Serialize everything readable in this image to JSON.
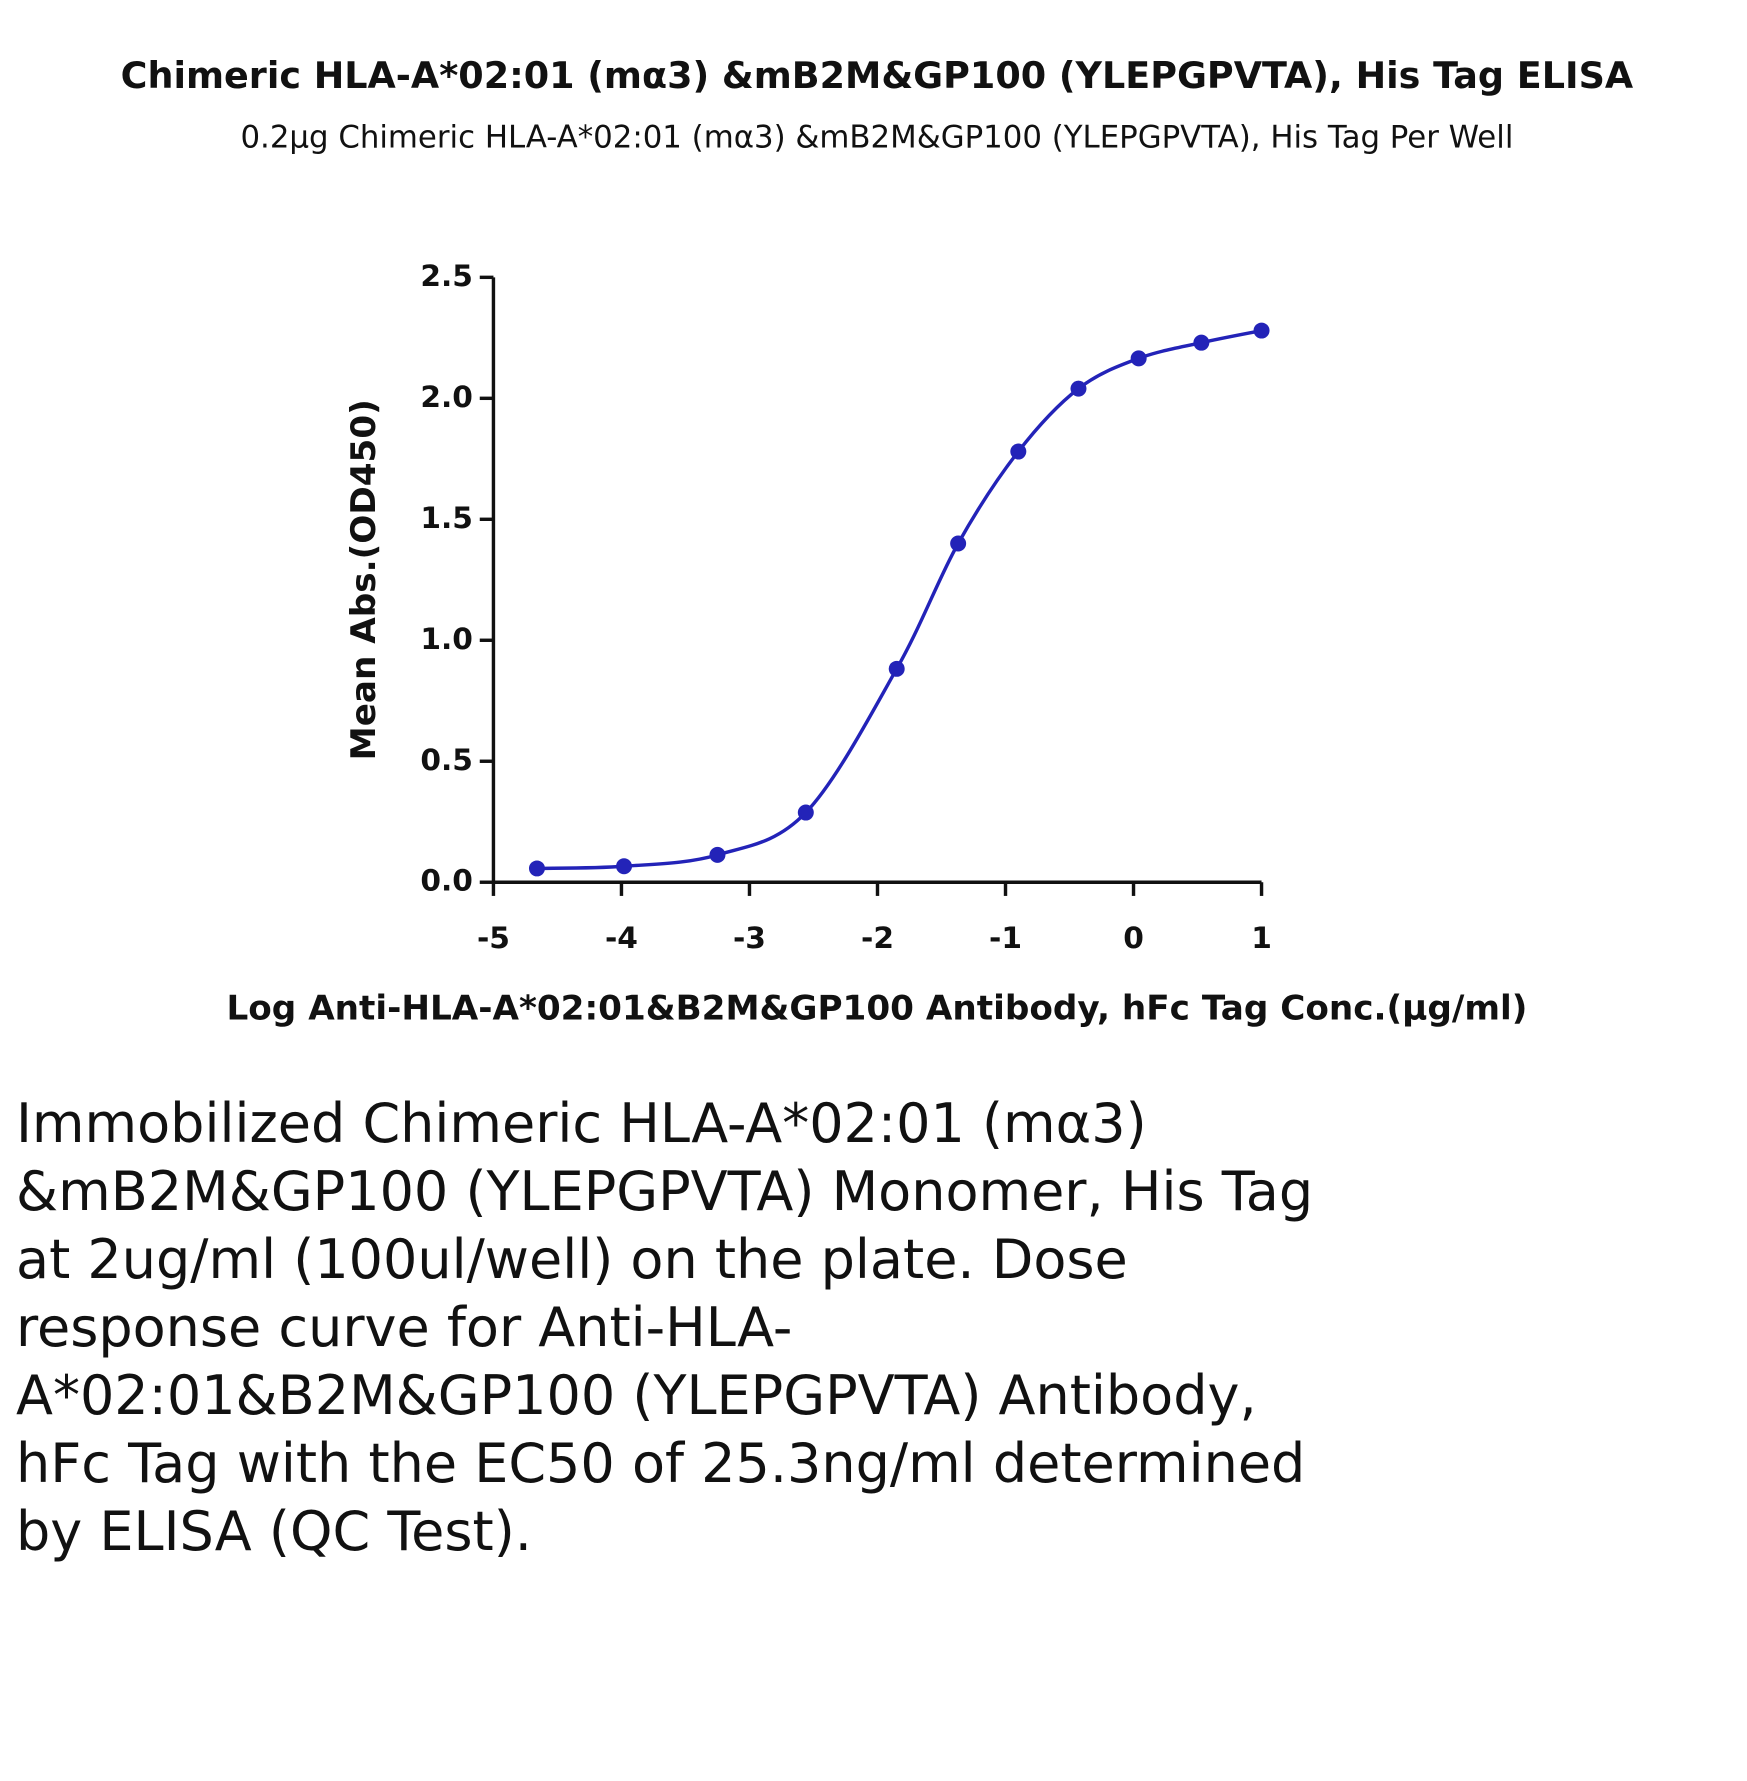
{
  "chart_data": {
    "type": "scatter",
    "title": "Chimeric HLA-A*02:01 (mα3) &mB2M&GP100 (YLEPGPVTA), His Tag ELISA",
    "subtitle": "0.2μg Chimeric HLA-A*02:01 (mα3) &mB2M&GP100 (YLEPGPVTA), His Tag Per Well",
    "x_label": "Log Anti-HLA-A*02:01&B2M&GP100 Antibody, hFc Tag Conc.(μg/ml)",
    "y_label": "Mean Abs.(OD450)",
    "series": [
      {
        "color": "#2323b8",
        "x": [
          -4.66,
          -3.98,
          -3.25,
          -2.56,
          -1.85,
          -1.37,
          -0.9,
          -0.43,
          0.04,
          0.53,
          1.0
        ],
        "values": [
          0.057,
          0.066,
          0.113,
          0.288,
          0.882,
          1.4,
          1.78,
          2.04,
          2.165,
          2.23,
          2.28
        ]
      }
    ],
    "xlim": [
      -5,
      1
    ],
    "xticks": [
      -5,
      -4,
      -3,
      -2,
      -1,
      0,
      1
    ],
    "ylim": [
      0,
      2.5
    ],
    "yticks": [
      {
        "value": 0,
        "label": "0.0"
      },
      0.5,
      {
        "value": 1,
        "label": "1.0"
      },
      1.5,
      {
        "value": 2,
        "label": "2.0"
      },
      2.5
    ]
  },
  "description": "Immobilized Chimeric HLA-A*02:01 (mα3) &mB2M&GP100 (YLEPGPVTA) Monomer, His Tag at 2ug/ml (100ul/well) on the plate. Dose response curve for Anti-HLA-A*02:01&B2M&GP100 (YLEPGPVTA) Antibody, hFc Tag with the EC50 of 25.3ng/ml determined by ELISA (QC Test)."
}
